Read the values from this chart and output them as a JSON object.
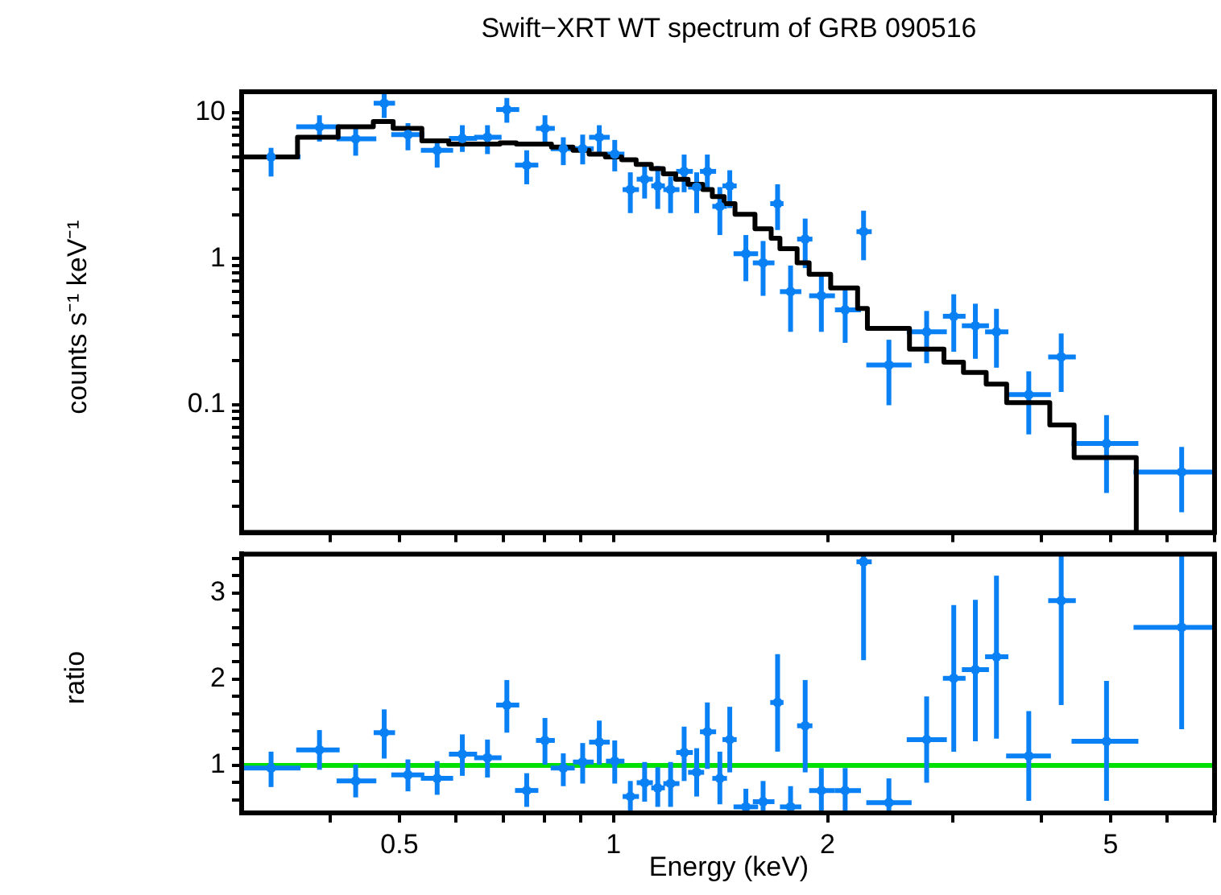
{
  "chart_data": [
    {
      "type": "scatter",
      "title": "Swift−XRT WT spectrum of GRB 090516",
      "ylabel": "counts s⁻¹ keV⁻¹",
      "log": "xy",
      "grid": false,
      "legend": false,
      "tick_labels": "y",
      "xlim": [
        0.3,
        7
      ],
      "xticks": [
        {
          "value": 0.4,
          "label": null
        },
        0.5,
        {
          "value": 0.6,
          "label": null
        },
        {
          "value": 0.7,
          "label": null
        },
        {
          "value": 0.8,
          "label": null
        },
        {
          "value": 0.9,
          "label": null
        },
        1,
        2,
        {
          "value": 3,
          "label": null
        },
        {
          "value": 4,
          "label": null
        },
        5,
        {
          "value": 6,
          "label": null
        },
        {
          "value": 7,
          "label": null
        }
      ],
      "ylim": [
        0.0133,
        13.9
      ],
      "yticks": [
        {
          "value": 0.02,
          "label": null
        },
        {
          "value": 0.03,
          "label": null
        },
        {
          "value": 0.04,
          "label": null
        },
        {
          "value": 0.05,
          "label": null
        },
        {
          "value": 0.06,
          "label": null
        },
        {
          "value": 0.07,
          "label": null
        },
        {
          "value": 0.08,
          "label": null
        },
        {
          "value": 0.09,
          "label": null
        },
        0.1,
        {
          "value": 0.2,
          "label": null
        },
        {
          "value": 0.3,
          "label": null
        },
        {
          "value": 0.4,
          "label": null
        },
        {
          "value": 0.5,
          "label": null
        },
        {
          "value": 0.6,
          "label": null
        },
        {
          "value": 0.7,
          "label": null
        },
        {
          "value": 0.8,
          "label": null
        },
        {
          "value": 0.9,
          "label": null
        },
        1,
        {
          "value": 2,
          "label": null
        },
        {
          "value": 3,
          "label": null
        },
        {
          "value": 4,
          "label": null
        },
        {
          "value": 5,
          "label": null
        },
        {
          "value": 6,
          "label": null
        },
        {
          "value": 7,
          "label": null
        },
        {
          "value": 8,
          "label": null
        },
        {
          "value": 9,
          "label": null
        },
        10
      ],
      "series": [
        {
          "type": "scatter",
          "color": "#0a80f5",
          "x": [
            0.33,
            0.386,
            0.434,
            0.476,
            0.514,
            0.565,
            0.613,
            0.665,
            0.708,
            0.755,
            0.801,
            0.85,
            0.905,
            0.955,
            1.004,
            1.056,
            1.106,
            1.154,
            1.203,
            1.257,
            1.309,
            1.355,
            1.411,
            1.457,
            1.535,
            1.623,
            1.701,
            1.774,
            1.86,
            1.96,
            2.117,
            2.247,
            2.439,
            2.756,
            3.009,
            3.227,
            3.455,
            3.836,
            4.261,
            4.934,
            6.293
          ],
          "values": [
            4.97,
            8.0,
            6.61,
            11.6,
            7.07,
            5.52,
            6.66,
            6.78,
            10.5,
            4.37,
            7.8,
            5.66,
            5.66,
            6.78,
            5.2,
            2.97,
            3.5,
            3.15,
            2.97,
            3.96,
            3.09,
            3.96,
            2.28,
            3.15,
            1.08,
            0.935,
            2.38,
            0.594,
            1.36,
            0.556,
            0.445,
            1.53,
            0.187,
            0.315,
            0.403,
            0.347,
            0.315,
            0.117,
            0.212,
            0.0542,
            0.0345
          ],
          "xerrors": [
            [
              0.3,
              0.363
            ],
            [
              0.358,
              0.412
            ],
            [
              0.408,
              0.464
            ],
            [
              0.46,
              0.493
            ],
            [
              0.487,
              0.542
            ],
            [
              0.536,
              0.595
            ],
            [
              0.587,
              0.643
            ],
            [
              0.637,
              0.696
            ],
            [
              0.684,
              0.737
            ],
            [
              0.727,
              0.784
            ],
            [
              0.778,
              0.827
            ],
            [
              0.816,
              0.882
            ],
            [
              0.877,
              0.938
            ],
            [
              0.924,
              0.988
            ],
            [
              0.976,
              1.036
            ],
            [
              1.03,
              1.086
            ],
            [
              1.078,
              1.136
            ],
            [
              1.13,
              1.181
            ],
            [
              1.175,
              1.238
            ],
            [
              1.225,
              1.293
            ],
            [
              1.273,
              1.341
            ],
            [
              1.323,
              1.394
            ],
            [
              1.377,
              1.444
            ],
            [
              1.423,
              1.49
            ],
            [
              1.475,
              1.597
            ],
            [
              1.57,
              1.684
            ],
            [
              1.661,
              1.734
            ],
            [
              1.714,
              1.837
            ],
            [
              1.812,
              1.904
            ],
            [
              1.884,
              2.048
            ],
            [
              2.048,
              2.228
            ],
            [
              2.196,
              2.307
            ],
            [
              2.267,
              2.625
            ],
            [
              2.584,
              2.942
            ],
            [
              2.905,
              3.126
            ],
            [
              3.089,
              3.372
            ],
            [
              3.33,
              3.591
            ],
            [
              3.565,
              4.121
            ],
            [
              4.085,
              4.467
            ],
            [
              4.406,
              5.47
            ],
            [
              5.385,
              7
            ]
          ],
          "errors": [
            [
              3.65,
              5.74
            ],
            [
              6.34,
              9.59
            ],
            [
              5.07,
              8.0
            ],
            [
              9.19,
              13.9
            ],
            [
              5.52,
              8.47
            ],
            [
              4.2,
              6.61
            ],
            [
              5.38,
              8.2
            ],
            [
              5.2,
              8.2
            ],
            [
              8.53,
              12.6
            ],
            [
              3.23,
              5.52
            ],
            [
              6.25,
              9.59
            ],
            [
              4.37,
              6.78
            ],
            [
              4.42,
              7.07
            ],
            [
              5.29,
              8.2
            ],
            [
              3.96,
              6.5
            ],
            [
              2.05,
              3.9
            ],
            [
              2.58,
              4.56
            ],
            [
              2.19,
              4.31
            ],
            [
              2.05,
              3.65
            ],
            [
              2.85,
              5.16
            ],
            [
              2.05,
              3.9
            ],
            [
              2.97,
              5.16
            ],
            [
              1.45,
              3.09
            ],
            [
              2.22,
              4.03
            ],
            [
              0.7,
              1.45
            ],
            [
              0.556,
              1.32
            ],
            [
              1.57,
              3.23
            ],
            [
              0.315,
              0.897
            ],
            [
              0.861,
              1.88
            ],
            [
              0.315,
              0.762
            ],
            [
              0.265,
              0.618
            ],
            [
              0.975,
              2.13
            ],
            [
              0.099,
              0.278
            ],
            [
              0.192,
              0.438
            ],
            [
              0.23,
              0.57
            ],
            [
              0.206,
              0.491
            ],
            [
              0.179,
              0.453
            ],
            [
              0.0625,
              0.169
            ],
            [
              0.122,
              0.307
            ],
            [
              0.0248,
              0.0847
            ],
            [
              0.0183,
              0.0513
            ]
          ],
          "marker": "circle"
        },
        {
          "type": "step",
          "color": "#000000",
          "line_style": "solid",
          "marker": "none",
          "x": [
            0.3,
            0.3595,
            0.41,
            0.4595,
            0.49,
            0.5377,
            0.5866,
            0.6925,
            0.73,
            0.818,
            0.877,
            0.924,
            0.974,
            1.027,
            1.076,
            1.13,
            1.175,
            1.223,
            1.273,
            1.335,
            1.377,
            1.431,
            1.482,
            1.581,
            1.666,
            1.714,
            1.812,
            1.884,
            2.02,
            2.204,
            2.275,
            2.607,
            2.915,
            3.105,
            3.342,
            3.571,
            4.106,
            4.443,
            5.433,
            5.433
          ],
          "values": [
            4.97,
            6.78,
            8.0,
            8.68,
            7.8,
            6.41,
            6.09,
            6.2,
            6.09,
            5.8,
            5.52,
            5.2,
            4.97,
            4.75,
            4.42,
            4.14,
            3.81,
            3.5,
            3.23,
            2.97,
            2.66,
            2.38,
            2.01,
            1.6,
            1.38,
            1.17,
            0.935,
            0.781,
            0.629,
            0.456,
            0.333,
            0.24,
            0.195,
            0.166,
            0.138,
            0.103,
            0.0725,
            0.0433,
            0.0433,
            0.0133
          ]
        }
      ]
    },
    {
      "type": "scatter",
      "xlabel": "Energy (keV)",
      "ylabel": "ratio",
      "log": "x",
      "grid": false,
      "legend": false,
      "xlim": [
        0.3,
        7
      ],
      "xticks": [
        {
          "value": 0.4,
          "label": null
        },
        0.5,
        {
          "value": 0.6,
          "label": null
        },
        {
          "value": 0.7,
          "label": null
        },
        {
          "value": 0.8,
          "label": null
        },
        {
          "value": 0.9,
          "label": null
        },
        1,
        2,
        {
          "value": 3,
          "label": null
        },
        {
          "value": 4,
          "label": null
        },
        5,
        {
          "value": 6,
          "label": null
        },
        {
          "value": 7,
          "label": null
        }
      ],
      "ylim": [
        0.45,
        3.45
      ],
      "yticks": [
        {
          "value": 0.6,
          "label": null
        },
        {
          "value": 0.8,
          "label": null
        },
        1,
        {
          "value": 1.2,
          "label": null
        },
        {
          "value": 1.4,
          "label": null
        },
        {
          "value": 1.6,
          "label": null
        },
        {
          "value": 1.8,
          "label": null
        },
        2,
        {
          "value": 2.2,
          "label": null
        },
        {
          "value": 2.4,
          "label": null
        },
        {
          "value": 2.6,
          "label": null
        },
        {
          "value": 2.8,
          "label": null
        },
        3,
        {
          "value": 3.2,
          "label": null
        },
        {
          "value": 3.4,
          "label": null
        }
      ],
      "ref_lines": [
        {
          "axis": "y",
          "value": 1,
          "color": "#00e000"
        }
      ],
      "series": [
        {
          "type": "scatter",
          "color": "#0a80f5",
          "x": [
            0.33,
            0.386,
            0.434,
            0.476,
            0.514,
            0.565,
            0.613,
            0.665,
            0.708,
            0.755,
            0.801,
            0.85,
            0.905,
            0.955,
            1.004,
            1.056,
            1.106,
            1.154,
            1.203,
            1.257,
            1.309,
            1.355,
            1.411,
            1.457,
            1.535,
            1.623,
            1.701,
            1.774,
            1.86,
            1.96,
            2.117,
            2.247,
            2.439,
            2.756,
            3.009,
            3.227,
            3.455,
            3.836,
            4.261,
            4.934,
            6.293
          ],
          "values": [
            0.97,
            1.18,
            0.82,
            1.38,
            0.89,
            0.85,
            1.13,
            1.09,
            1.7,
            0.71,
            1.29,
            0.97,
            1.04,
            1.27,
            1.05,
            0.64,
            0.8,
            0.74,
            0.79,
            1.15,
            0.92,
            1.39,
            0.85,
            1.3,
            0.52,
            0.58,
            1.73,
            0.52,
            1.46,
            0.71,
            0.71,
            3.36,
            0.57,
            1.3,
            2.01,
            2.11,
            2.26,
            1.11,
            2.91,
            1.28,
            2.6
          ],
          "xerrors": [
            [
              0.3,
              0.363
            ],
            [
              0.358,
              0.412
            ],
            [
              0.408,
              0.464
            ],
            [
              0.46,
              0.493
            ],
            [
              0.487,
              0.542
            ],
            [
              0.536,
              0.595
            ],
            [
              0.587,
              0.643
            ],
            [
              0.637,
              0.696
            ],
            [
              0.684,
              0.737
            ],
            [
              0.727,
              0.784
            ],
            [
              0.778,
              0.827
            ],
            [
              0.816,
              0.882
            ],
            [
              0.877,
              0.938
            ],
            [
              0.924,
              0.988
            ],
            [
              0.976,
              1.036
            ],
            [
              1.03,
              1.086
            ],
            [
              1.078,
              1.136
            ],
            [
              1.13,
              1.181
            ],
            [
              1.175,
              1.238
            ],
            [
              1.225,
              1.293
            ],
            [
              1.273,
              1.341
            ],
            [
              1.323,
              1.394
            ],
            [
              1.377,
              1.444
            ],
            [
              1.423,
              1.49
            ],
            [
              1.475,
              1.597
            ],
            [
              1.57,
              1.684
            ],
            [
              1.661,
              1.734
            ],
            [
              1.714,
              1.837
            ],
            [
              1.812,
              1.904
            ],
            [
              1.884,
              2.048
            ],
            [
              2.048,
              2.228
            ],
            [
              2.196,
              2.307
            ],
            [
              2.267,
              2.625
            ],
            [
              2.584,
              2.942
            ],
            [
              2.905,
              3.126
            ],
            [
              3.089,
              3.372
            ],
            [
              3.33,
              3.591
            ],
            [
              3.565,
              4.121
            ],
            [
              4.085,
              4.467
            ],
            [
              4.406,
              5.47
            ],
            [
              5.385,
              7
            ]
          ],
          "errors": [
            [
              0.75,
              1.16
            ],
            [
              0.95,
              1.41
            ],
            [
              0.63,
              1.01
            ],
            [
              1.08,
              1.65
            ],
            [
              0.7,
              1.07
            ],
            [
              0.66,
              1.05
            ],
            [
              0.88,
              1.36
            ],
            [
              0.86,
              1.3
            ],
            [
              1.38,
              1.99
            ],
            [
              0.52,
              0.91
            ],
            [
              1.01,
              1.55
            ],
            [
              0.76,
              1.14
            ],
            [
              0.79,
              1.26
            ],
            [
              1.01,
              1.52
            ],
            [
              0.79,
              1.29
            ],
            [
              0.45,
              0.82
            ],
            [
              0.58,
              1.04
            ],
            [
              0.52,
              0.98
            ],
            [
              0.52,
              1.04
            ],
            [
              0.82,
              1.45
            ],
            [
              0.64,
              1.2
            ],
            [
              0.96,
              1.73
            ],
            [
              0.55,
              1.16
            ],
            [
              0.92,
              1.68
            ],
            [
              0.45,
              0.73
            ],
            [
              0.45,
              0.82
            ],
            [
              1.16,
              2.29
            ],
            [
              0.45,
              0.76
            ],
            [
              0.92,
              1.99
            ],
            [
              0.45,
              0.97
            ],
            [
              0.45,
              0.97
            ],
            [
              2.22,
              3.45
            ],
            [
              0.45,
              0.85
            ],
            [
              0.8,
              1.8
            ],
            [
              1.16,
              2.86
            ],
            [
              1.28,
              2.92
            ],
            [
              1.31,
              3.2
            ],
            [
              0.59,
              1.63
            ],
            [
              1.7,
              3.45
            ],
            [
              0.59,
              1.98
            ],
            [
              1.42,
              3.45
            ]
          ],
          "marker": "circle"
        }
      ]
    }
  ]
}
